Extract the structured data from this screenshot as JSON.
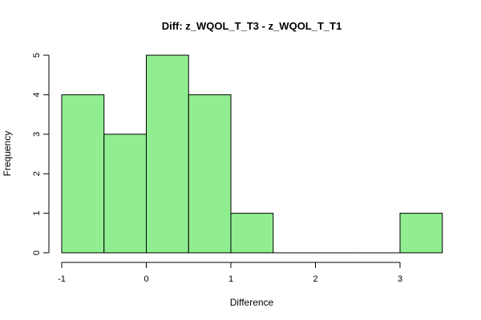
{
  "chart_data": {
    "type": "bar",
    "subtype": "histogram",
    "title": "Diff: z_WQOL_T_T3 - z_WQOL_T_T1",
    "xlabel": "Difference",
    "ylabel": "Frequency",
    "bins": [
      {
        "from": -1.0,
        "to": -0.5,
        "count": 4
      },
      {
        "from": -0.5,
        "to": 0.0,
        "count": 3
      },
      {
        "from": 0.0,
        "to": 0.5,
        "count": 5
      },
      {
        "from": 0.5,
        "to": 1.0,
        "count": 4
      },
      {
        "from": 1.0,
        "to": 1.5,
        "count": 1
      },
      {
        "from": 1.5,
        "to": 2.0,
        "count": 0
      },
      {
        "from": 2.0,
        "to": 2.5,
        "count": 0
      },
      {
        "from": 2.5,
        "to": 3.0,
        "count": 0
      },
      {
        "from": 3.0,
        "to": 3.5,
        "count": 1
      }
    ],
    "xlim": [
      -1,
      3.5
    ],
    "ylim": [
      0,
      5
    ],
    "xticks": [
      -1,
      0,
      1,
      2,
      3
    ],
    "yticks": [
      0,
      1,
      2,
      3,
      4,
      5
    ],
    "grid": false,
    "bar_fill": "#90ee90",
    "bar_stroke": "#000000"
  }
}
